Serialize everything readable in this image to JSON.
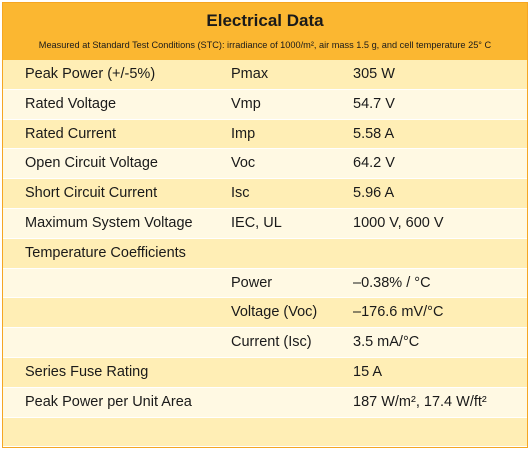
{
  "title": "Electrical Data",
  "subtitle": "Measured at Standard Test Conditions (STC): irradiance of 1000/m², air mass 1.5 g, and cell temperature 25° C",
  "rows": [
    {
      "label": "Peak Power (+/-5%)",
      "symbol": "Pmax",
      "value": "305 W"
    },
    {
      "label": "Rated Voltage",
      "symbol": "Vmp",
      "value": "54.7 V"
    },
    {
      "label": "Rated Current",
      "symbol": "Imp",
      "value": "5.58 A"
    },
    {
      "label": "Open Circuit Voltage",
      "symbol": "Voc",
      "value": "64.2 V"
    },
    {
      "label": "Short Circuit Current",
      "symbol": "Isc",
      "value": "5.96 A"
    },
    {
      "label": "Maximum System Voltage",
      "symbol": "IEC, UL",
      "value": "1000 V, 600 V"
    },
    {
      "label": "Temperature Coefficients",
      "symbol": "",
      "value": ""
    },
    {
      "label": "",
      "symbol": "Power",
      "value": "–0.38% / °C"
    },
    {
      "label": "",
      "symbol": "Voltage (Voc)",
      "value": "–176.6 mV/°C"
    },
    {
      "label": "",
      "symbol": "Current (Isc)",
      "value": "3.5 mA/°C"
    },
    {
      "label": "Series Fuse Rating",
      "symbol": "",
      "value": "15 A"
    },
    {
      "label": "Peak Power per Unit Area",
      "symbol": "",
      "value": "187 W/m², 17.4 W/ft²"
    },
    {
      "label": "",
      "symbol": "",
      "value": ""
    }
  ]
}
